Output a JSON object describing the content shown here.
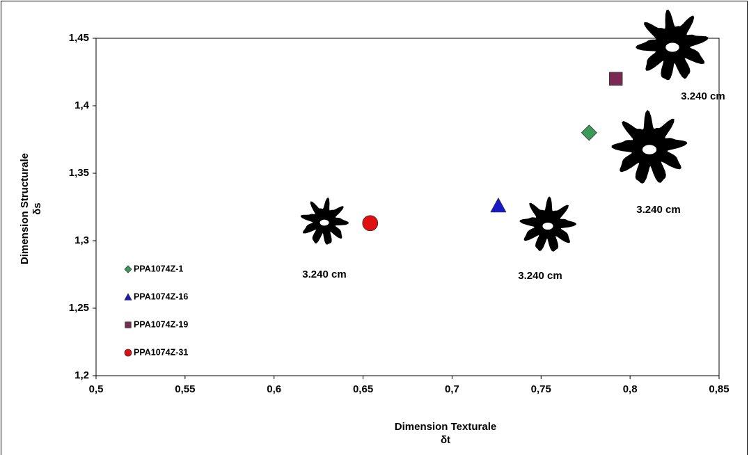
{
  "chart_data": {
    "type": "scatter",
    "xlabel": [
      "Dimension Texturale",
      "δt"
    ],
    "ylabel": [
      "Dimension Structurale",
      "δs"
    ],
    "xlim": [
      0.5,
      0.85
    ],
    "ylim": [
      1.2,
      1.45
    ],
    "xticks": [
      {
        "value": 0.5,
        "label": "0,5"
      },
      {
        "value": 0.55,
        "label": "0,55"
      },
      {
        "value": 0.6,
        "label": "0,6"
      },
      {
        "value": 0.65,
        "label": "0,65"
      },
      {
        "value": 0.7,
        "label": "0,7"
      },
      {
        "value": 0.75,
        "label": "0,75"
      },
      {
        "value": 0.8,
        "label": "0,8"
      },
      {
        "value": 0.85,
        "label": "0,85"
      }
    ],
    "yticks": [
      {
        "value": 1.2,
        "label": "1,2"
      },
      {
        "value": 1.25,
        "label": "1,25"
      },
      {
        "value": 1.3,
        "label": "1,3"
      },
      {
        "value": 1.35,
        "label": "1,35"
      },
      {
        "value": 1.4,
        "label": "1,4"
      },
      {
        "value": 1.45,
        "label": "1,45"
      }
    ],
    "grid": false,
    "legend": "lower left",
    "series": [
      {
        "name": "PPA1074Z-1",
        "color": "#3a9a5a",
        "marker": "diamond",
        "x": [
          0.777
        ],
        "values": [
          1.38
        ]
      },
      {
        "name": "PPA1074Z-16",
        "color": "#1818c8",
        "marker": "triangle",
        "x": [
          0.726
        ],
        "values": [
          1.326
        ]
      },
      {
        "name": "PPA1074Z-19",
        "color": "#7a2a52",
        "marker": "square",
        "x": [
          0.792
        ],
        "values": [
          1.42
        ]
      },
      {
        "name": "PPA1074Z-31",
        "color": "#e01010",
        "marker": "circle",
        "x": [
          0.654
        ],
        "values": [
          1.313
        ]
      }
    ],
    "annotations": [
      "3.240 cm",
      "3.240 cm",
      "3.240 cm",
      "3.240 cm"
    ]
  }
}
